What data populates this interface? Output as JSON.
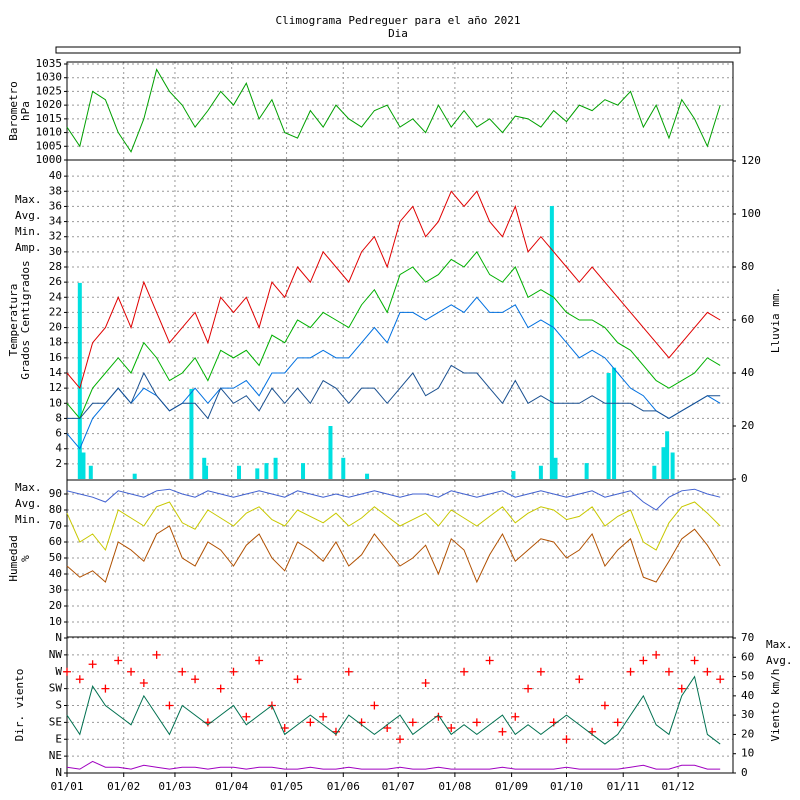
{
  "chart_data": [
    {
      "type": "line",
      "title": "Climograma Pedreguer para el año 2021",
      "subtitle": "Dia",
      "ylabel": [
        "Barometro",
        "hPa"
      ],
      "xlim": [
        1,
        365
      ],
      "ylim": [
        1000,
        1035
      ],
      "yticks": [
        1000,
        1005,
        1010,
        1015,
        1020,
        1025,
        1030,
        1035
      ],
      "grid": true,
      "x": [
        1,
        8,
        15,
        22,
        29,
        36,
        43,
        50,
        57,
        64,
        71,
        78,
        85,
        92,
        99,
        106,
        113,
        120,
        127,
        134,
        141,
        148,
        155,
        162,
        169,
        176,
        183,
        190,
        197,
        204,
        211,
        218,
        225,
        232,
        239,
        246,
        253,
        260,
        267,
        274,
        281,
        288,
        295,
        302,
        309,
        316,
        323,
        330,
        337,
        344,
        351,
        358
      ],
      "series": [
        {
          "color": "#00a000",
          "values": [
            1012,
            1005,
            1025,
            1022,
            1010,
            1003,
            1015,
            1033,
            1025,
            1020,
            1012,
            1018,
            1025,
            1020,
            1028,
            1015,
            1022,
            1010,
            1008,
            1018,
            1012,
            1020,
            1015,
            1012,
            1018,
            1020,
            1012,
            1015,
            1010,
            1020,
            1012,
            1018,
            1012,
            1015,
            1010,
            1016,
            1015,
            1012,
            1018,
            1014,
            1020,
            1018,
            1022,
            1020,
            1025,
            1012,
            1020,
            1008,
            1022,
            1015,
            1005,
            1020
          ]
        }
      ]
    },
    {
      "type": "line",
      "ylabel": [
        "Temperatura",
        "Grados Centigrados"
      ],
      "y2label": "Lluvia mm.",
      "xlim": [
        1,
        365
      ],
      "ylim": [
        0,
        42
      ],
      "yticks": [
        2,
        4,
        6,
        8,
        10,
        12,
        14,
        16,
        18,
        20,
        22,
        24,
        26,
        28,
        30,
        32,
        34,
        36,
        38,
        40
      ],
      "y2lim": [
        0,
        120
      ],
      "y2ticks": [
        0,
        20,
        40,
        60,
        80,
        100,
        120
      ],
      "grid": true,
      "legend": "left",
      "x": [
        1,
        8,
        15,
        22,
        29,
        36,
        43,
        50,
        57,
        64,
        71,
        78,
        85,
        92,
        99,
        106,
        113,
        120,
        127,
        134,
        141,
        148,
        155,
        162,
        169,
        176,
        183,
        190,
        197,
        204,
        211,
        218,
        225,
        232,
        239,
        246,
        253,
        260,
        267,
        274,
        281,
        288,
        295,
        302,
        309,
        316,
        323,
        330,
        337,
        344,
        351,
        358
      ],
      "series": [
        {
          "type": "bar",
          "axis": "y2",
          "color": "#00e0e0",
          "x": [
            8,
            10,
            14,
            38,
            69,
            76,
            77,
            95,
            105,
            110,
            115,
            130,
            145,
            152,
            165,
            245,
            260,
            266,
            268,
            285,
            297,
            300,
            322,
            327,
            329,
            332
          ],
          "values": [
            74,
            10,
            5,
            2,
            34,
            8,
            5,
            5,
            4,
            6,
            8,
            6,
            20,
            8,
            2,
            3,
            5,
            103,
            8,
            6,
            40,
            42,
            5,
            12,
            18,
            10
          ]
        },
        {
          "name": "Max.",
          "color": "#e00000",
          "values": [
            14,
            12,
            18,
            20,
            24,
            20,
            26,
            22,
            18,
            20,
            22,
            18,
            24,
            22,
            24,
            20,
            26,
            24,
            28,
            26,
            30,
            28,
            26,
            30,
            32,
            28,
            34,
            36,
            32,
            34,
            38,
            36,
            38,
            34,
            32,
            36,
            30,
            32,
            30,
            28,
            26,
            28,
            26,
            24,
            22,
            20,
            18,
            16,
            18,
            20,
            22,
            21
          ]
        },
        {
          "name": "Avg.",
          "color": "#00b000",
          "values": [
            10,
            8,
            12,
            14,
            16,
            14,
            18,
            16,
            13,
            14,
            16,
            13,
            17,
            16,
            17,
            15,
            19,
            18,
            21,
            20,
            22,
            21,
            20,
            23,
            25,
            22,
            27,
            28,
            26,
            27,
            29,
            28,
            30,
            27,
            26,
            28,
            24,
            25,
            24,
            22,
            21,
            21,
            20,
            18,
            17,
            15,
            13,
            12,
            13,
            14,
            16,
            15
          ]
        },
        {
          "name": "Min.",
          "color": "#0070e0",
          "values": [
            6,
            4,
            8,
            10,
            12,
            10,
            12,
            11,
            9,
            10,
            12,
            10,
            12,
            12,
            13,
            11,
            14,
            14,
            16,
            16,
            17,
            16,
            16,
            18,
            20,
            18,
            22,
            22,
            21,
            22,
            23,
            22,
            24,
            22,
            22,
            23,
            20,
            21,
            20,
            18,
            16,
            17,
            16,
            14,
            12,
            11,
            9,
            8,
            9,
            10,
            11,
            10
          ]
        },
        {
          "name": "Amp.",
          "color": "#1a5090",
          "values": [
            8,
            8,
            10,
            10,
            12,
            10,
            14,
            11,
            9,
            10,
            10,
            8,
            12,
            10,
            11,
            9,
            12,
            10,
            12,
            10,
            13,
            12,
            10,
            12,
            12,
            10,
            12,
            14,
            11,
            12,
            15,
            14,
            14,
            12,
            10,
            13,
            10,
            11,
            10,
            10,
            10,
            11,
            10,
            10,
            10,
            9,
            9,
            8,
            9,
            10,
            11,
            11
          ]
        }
      ]
    },
    {
      "type": "line",
      "ylabel": [
        "Humedad",
        "%"
      ],
      "xlim": [
        1,
        365
      ],
      "ylim": [
        0,
        100
      ],
      "yticks": [
        10,
        20,
        30,
        40,
        50,
        60,
        70,
        80,
        90
      ],
      "grid": true,
      "legend": "left",
      "x": [
        1,
        8,
        15,
        22,
        29,
        36,
        43,
        50,
        57,
        64,
        71,
        78,
        85,
        92,
        99,
        106,
        113,
        120,
        127,
        134,
        141,
        148,
        155,
        162,
        169,
        176,
        183,
        190,
        197,
        204,
        211,
        218,
        225,
        232,
        239,
        246,
        253,
        260,
        267,
        274,
        281,
        288,
        295,
        302,
        309,
        316,
        323,
        330,
        337,
        344,
        351,
        358
      ],
      "series": [
        {
          "name": "Max.",
          "color": "#4060d0",
          "values": [
            92,
            90,
            88,
            85,
            92,
            90,
            88,
            92,
            93,
            90,
            88,
            92,
            90,
            88,
            90,
            92,
            90,
            88,
            92,
            90,
            88,
            90,
            88,
            90,
            92,
            90,
            88,
            90,
            90,
            88,
            92,
            90,
            88,
            90,
            92,
            88,
            90,
            92,
            90,
            88,
            90,
            92,
            88,
            90,
            92,
            85,
            80,
            88,
            92,
            93,
            90,
            88
          ]
        },
        {
          "name": "Avg.",
          "color": "#c8c800",
          "values": [
            78,
            60,
            65,
            55,
            80,
            75,
            70,
            82,
            85,
            72,
            68,
            80,
            75,
            70,
            78,
            82,
            74,
            70,
            80,
            76,
            72,
            78,
            70,
            75,
            82,
            76,
            70,
            74,
            78,
            70,
            80,
            75,
            70,
            76,
            82,
            72,
            78,
            82,
            80,
            74,
            76,
            82,
            70,
            76,
            80,
            60,
            55,
            72,
            82,
            85,
            78,
            70
          ]
        },
        {
          "name": "Min.",
          "color": "#b05000",
          "values": [
            45,
            38,
            42,
            35,
            60,
            55,
            48,
            65,
            70,
            50,
            45,
            60,
            55,
            45,
            58,
            65,
            50,
            42,
            60,
            55,
            48,
            60,
            45,
            52,
            65,
            55,
            45,
            50,
            58,
            40,
            62,
            55,
            35,
            52,
            65,
            48,
            55,
            62,
            60,
            50,
            55,
            65,
            45,
            55,
            62,
            38,
            35,
            48,
            62,
            68,
            58,
            45
          ]
        }
      ]
    },
    {
      "type": "line",
      "ylabel": [
        "Dir. viento"
      ],
      "y2label": "Viento km/h",
      "xlim": [
        1,
        365
      ],
      "ylim": [
        0,
        360
      ],
      "yticks": [
        {
          "value": 0,
          "label": "N"
        },
        {
          "value": 45,
          "label": "NE"
        },
        {
          "value": 90,
          "label": "E"
        },
        {
          "value": 135,
          "label": "SE"
        },
        {
          "value": 180,
          "label": "S"
        },
        {
          "value": 225,
          "label": "SW"
        },
        {
          "value": 270,
          "label": "W"
        },
        {
          "value": 315,
          "label": "NW"
        },
        {
          "value": 360,
          "label": "N"
        }
      ],
      "y2lim": [
        0,
        70
      ],
      "y2ticks": [
        0,
        10,
        20,
        30,
        40,
        50,
        60,
        70
      ],
      "grid": true,
      "legend": "right",
      "xticks": [
        {
          "value": 1,
          "label": "01/01"
        },
        {
          "value": 32,
          "label": "01/02"
        },
        {
          "value": 60,
          "label": "01/03"
        },
        {
          "value": 91,
          "label": "01/04"
        },
        {
          "value": 121,
          "label": "01/05"
        },
        {
          "value": 152,
          "label": "01/06"
        },
        {
          "value": 182,
          "label": "01/07"
        },
        {
          "value": 213,
          "label": "01/08"
        },
        {
          "value": 244,
          "label": "01/09"
        },
        {
          "value": 274,
          "label": "01/10"
        },
        {
          "value": 305,
          "label": "01/11"
        },
        {
          "value": 335,
          "label": "01/12"
        }
      ],
      "x": [
        1,
        8,
        15,
        22,
        29,
        36,
        43,
        50,
        57,
        64,
        71,
        78,
        85,
        92,
        99,
        106,
        113,
        120,
        127,
        134,
        141,
        148,
        155,
        162,
        169,
        176,
        183,
        190,
        197,
        204,
        211,
        218,
        225,
        232,
        239,
        246,
        253,
        260,
        267,
        274,
        281,
        288,
        295,
        302,
        309,
        316,
        323,
        330,
        337,
        344,
        351,
        358
      ],
      "series": [
        {
          "type": "scatter",
          "color": "#ff0000",
          "values": [
            270,
            250,
            290,
            225,
            300,
            270,
            240,
            315,
            180,
            270,
            250,
            135,
            225,
            270,
            150,
            300,
            180,
            120,
            250,
            135,
            150,
            110,
            270,
            135,
            180,
            120,
            90,
            135,
            240,
            150,
            120,
            270,
            135,
            300,
            110,
            150,
            225,
            270,
            135,
            90,
            250,
            110,
            180,
            135,
            270,
            300,
            315,
            270,
            225,
            300,
            270,
            250
          ]
        },
        {
          "name": "Max.",
          "axis": "y2",
          "color": "#007050",
          "values": [
            30,
            20,
            45,
            35,
            30,
            25,
            40,
            30,
            20,
            35,
            30,
            25,
            30,
            35,
            25,
            30,
            35,
            20,
            25,
            30,
            25,
            20,
            30,
            25,
            20,
            25,
            30,
            20,
            25,
            30,
            20,
            25,
            20,
            25,
            30,
            20,
            25,
            20,
            25,
            30,
            25,
            20,
            15,
            20,
            30,
            40,
            25,
            20,
            40,
            50,
            20,
            15
          ]
        },
        {
          "name": "Avg.",
          "axis": "y2",
          "color": "#a000c0",
          "values": [
            3,
            2,
            6,
            3,
            3,
            2,
            4,
            3,
            2,
            3,
            3,
            2,
            3,
            3,
            2,
            3,
            3,
            2,
            2,
            3,
            2,
            2,
            3,
            2,
            2,
            2,
            3,
            2,
            2,
            3,
            2,
            2,
            2,
            2,
            3,
            2,
            2,
            2,
            2,
            3,
            2,
            2,
            2,
            2,
            3,
            4,
            2,
            2,
            4,
            4,
            2,
            2
          ]
        }
      ]
    }
  ]
}
